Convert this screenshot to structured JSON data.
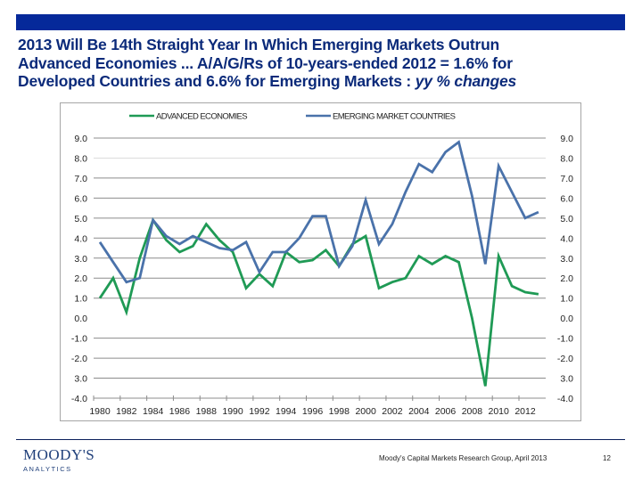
{
  "header": {
    "title_line1": "2013 Will Be 14th Straight Year In Which Emerging Markets Outrun",
    "title_line2": "Advanced Economies ... A/A/G/Rs of 10-years-ended 2012 = 1.6% for",
    "title_line3_main": "Developed Countries and 6.6% for Emerging Markets : ",
    "title_line3_italic": "yy % changes",
    "bar_color": "#05299a"
  },
  "chart_data": {
    "type": "line",
    "title": "2013 Will Be 14th Straight Year In Which Emerging Markets Outrun Advanced Economies ... A/A/G/Rs of 10-years-ended 2012 = 1.6% for Developed Countries and 6.6% for Emerging Markets : yy % changes",
    "xlabel": "",
    "ylabel": "yy % changes",
    "x": [
      1980,
      1981,
      1982,
      1983,
      1984,
      1985,
      1986,
      1987,
      1988,
      1989,
      1990,
      1991,
      1992,
      1993,
      1994,
      1995,
      1996,
      1997,
      1998,
      1999,
      2000,
      2001,
      2002,
      2003,
      2004,
      2005,
      2006,
      2007,
      2008,
      2009,
      2010,
      2011,
      2012,
      2013
    ],
    "x_tick_labels": [
      "1980",
      "1982",
      "1984",
      "1986",
      "1988",
      "1990",
      "1992",
      "1994",
      "1996",
      "1998",
      "2000",
      "2002",
      "2004",
      "2006",
      "2008",
      "2010",
      "2012"
    ],
    "y_tick_labels_left": [
      "9.0",
      "8.0",
      "7.0",
      "6.0",
      "5.0",
      "4.0",
      "3.0",
      "2.0",
      "1.0",
      "0.0",
      "-1.0",
      "-2.0",
      "3.0",
      "-4.0"
    ],
    "y_tick_labels_right": [
      "9.0",
      "8.0",
      "7.0",
      "6.0",
      "5.0",
      "4.0",
      "3.0",
      "2.0",
      "1.0",
      "0.0",
      "-1.0",
      "-2.0",
      "3.0",
      "-4.0"
    ],
    "ylim": [
      -4,
      9
    ],
    "grid": true,
    "legend_position": "top-center",
    "series": [
      {
        "name": "ADVANCED ECONOMIES",
        "color": "#1f9a55",
        "values": [
          1.0,
          2.0,
          0.3,
          3.0,
          4.9,
          3.9,
          3.3,
          3.6,
          4.7,
          3.9,
          3.3,
          1.5,
          2.2,
          1.6,
          3.3,
          2.8,
          2.9,
          3.4,
          2.6,
          3.7,
          4.1,
          1.5,
          1.8,
          2.0,
          3.1,
          2.7,
          3.1,
          2.8,
          0.0,
          -3.4,
          3.1,
          1.6,
          1.3,
          1.2
        ]
      },
      {
        "name": "EMERGING MARKET COUNTRIES",
        "color": "#4a72aa",
        "values": [
          3.8,
          2.8,
          1.8,
          2.0,
          4.9,
          4.1,
          3.7,
          4.1,
          3.8,
          3.5,
          3.4,
          3.8,
          2.3,
          3.3,
          3.3,
          4.0,
          5.1,
          5.1,
          2.6,
          3.6,
          5.9,
          3.7,
          4.7,
          6.3,
          7.7,
          7.3,
          8.3,
          8.8,
          6.1,
          2.7,
          7.6,
          6.3,
          5.0,
          5.3
        ]
      }
    ]
  },
  "footer": {
    "logo_name": "MOODY'S",
    "logo_sub": "ANALYTICS",
    "source": "Moody's Capital Markets Research Group,  April 2013",
    "page_number": "12"
  }
}
